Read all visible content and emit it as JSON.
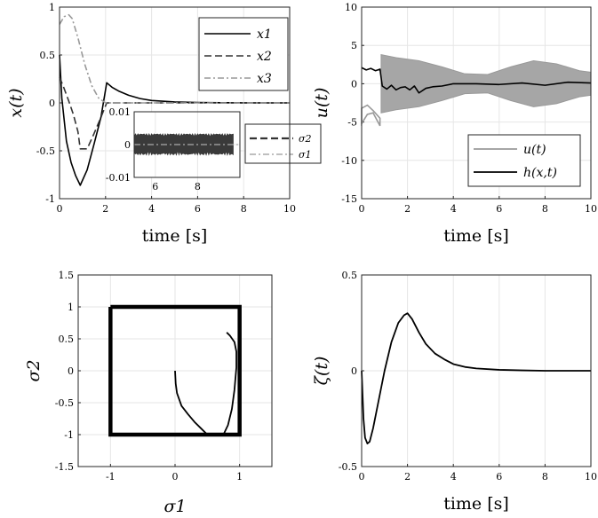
{
  "chart_data": [
    {
      "id": "p1",
      "type": "line",
      "xlabel": "time [s]",
      "ylabel": "x(t)",
      "xlim": [
        0,
        10
      ],
      "ylim": [
        -1,
        1
      ],
      "xticks": [
        "0",
        "2",
        "4",
        "6",
        "8",
        "10"
      ],
      "yticks": [
        "-1",
        "-0.5",
        "0",
        "0.5",
        "1"
      ],
      "grid": true,
      "legend_position": "top-right",
      "series": [
        {
          "name": "x1",
          "style": "solid",
          "color": "#000000",
          "x": [
            0,
            0.1,
            0.3,
            0.5,
            0.7,
            0.9,
            1.2,
            1.5,
            1.8,
            2.05,
            2.3,
            2.6,
            3,
            3.5,
            4,
            5,
            6,
            7,
            8,
            9,
            10
          ],
          "y": [
            0.5,
            0.05,
            -0.4,
            -0.62,
            -0.76,
            -0.86,
            -0.7,
            -0.43,
            -0.15,
            0.21,
            0.16,
            0.12,
            0.08,
            0.045,
            0.025,
            0.01,
            0.004,
            0.002,
            0.001,
            0,
            0
          ]
        },
        {
          "name": "x2",
          "style": "dashed",
          "color": "#333333",
          "x": [
            0,
            0.2,
            0.4,
            0.6,
            0.8,
            0.9,
            1.2,
            1.5,
            1.8,
            2.05,
            2.3,
            2.7,
            3.5,
            5,
            10
          ],
          "y": [
            0.27,
            0.15,
            0.02,
            -0.12,
            -0.3,
            -0.48,
            -0.48,
            -0.32,
            -0.15,
            0,
            0,
            0,
            0,
            0,
            0
          ]
        },
        {
          "name": "x3",
          "style": "dashdot",
          "color": "#999999",
          "x": [
            0,
            0.2,
            0.4,
            0.55,
            0.8,
            1.1,
            1.4,
            1.7,
            2,
            2.5,
            3,
            4,
            10
          ],
          "y": [
            0.82,
            0.9,
            0.92,
            0.88,
            0.68,
            0.4,
            0.18,
            0.05,
            0,
            0,
            0,
            0,
            0
          ]
        }
      ],
      "inset": {
        "xlim": [
          5,
          10
        ],
        "ylim": [
          -0.01,
          0.01
        ],
        "xticks": [
          "6",
          "8"
        ],
        "yticks": [
          "-0.01",
          "0",
          "0.01"
        ],
        "band_half_width": 0.0035,
        "band_x": [
          5,
          9.7
        ]
      },
      "inset_legend": [
        {
          "name": "σ2",
          "style": "dashed"
        },
        {
          "name": "σ1",
          "style": "dashdot"
        }
      ]
    },
    {
      "id": "p2",
      "type": "line",
      "xlabel": "time [s]",
      "ylabel": "u(t)",
      "xlim": [
        0,
        10
      ],
      "ylim": [
        -15,
        10
      ],
      "xticks": [
        "0",
        "2",
        "4",
        "6",
        "8",
        "10"
      ],
      "yticks": [
        "-15",
        "-10",
        "-5",
        "0",
        "5",
        "10"
      ],
      "grid": true,
      "legend_position": "bottom-right",
      "series": [
        {
          "name": "u(t)",
          "style": "band",
          "color": "#999999",
          "x": [
            0,
            0.25,
            0.5,
            0.8,
            0.85,
            1.5,
            2.5,
            3.5,
            4.5,
            5.5,
            6.5,
            7.5,
            8.5,
            9.5,
            10
          ],
          "upper": [
            -3.2,
            -2.8,
            -3.5,
            -4.5,
            3.8,
            3.4,
            3,
            2.2,
            1.3,
            1.2,
            2.2,
            3,
            2.6,
            1.7,
            1.5
          ],
          "lower": [
            -5.2,
            -4,
            -3.8,
            -5.5,
            -3.8,
            -3.4,
            -3,
            -2.2,
            -1.3,
            -1.2,
            -2.2,
            -3,
            -2.6,
            -1.7,
            -1.5
          ]
        },
        {
          "name": "h(x,t)",
          "style": "solid",
          "color": "#000000",
          "x": [
            0,
            0.2,
            0.4,
            0.6,
            0.8,
            0.9,
            1.1,
            1.3,
            1.5,
            1.7,
            1.9,
            2.1,
            2.3,
            2.5,
            2.8,
            3.1,
            3.5,
            4,
            5,
            6,
            7,
            8,
            9,
            10
          ],
          "y": [
            2.1,
            1.8,
            2.0,
            1.7,
            1.9,
            -0.3,
            -0.7,
            -0.2,
            -0.8,
            -0.5,
            -0.4,
            -0.8,
            -0.3,
            -1.2,
            -0.6,
            -0.4,
            -0.3,
            0,
            0,
            -0.1,
            0.1,
            -0.2,
            0.2,
            0.1
          ]
        }
      ]
    },
    {
      "id": "p3",
      "type": "line",
      "xlabel": "σ1",
      "ylabel": "σ2",
      "xlim": [
        -1.5,
        1.5
      ],
      "ylim": [
        -1.5,
        1.5
      ],
      "xticks": [
        "-1",
        "0",
        "1"
      ],
      "yticks": [
        "-1.5",
        "-1",
        "-0.5",
        "0",
        "0.5",
        "1",
        "1.5"
      ],
      "grid": true,
      "series": [
        {
          "name": "",
          "style": "box",
          "color": "#000000",
          "x": [
            -1,
            1,
            1,
            -1,
            -1
          ],
          "y": [
            1,
            1,
            -1,
            -1,
            1
          ]
        },
        {
          "name": "",
          "style": "solid",
          "color": "#000000",
          "x": [
            0,
            0.01,
            0.03,
            0.1,
            0.2,
            0.3,
            0.4,
            0.5,
            0.55,
            0.65,
            0.75,
            0.82,
            0.88,
            0.92,
            0.95,
            0.95,
            0.92,
            0.85,
            0.8
          ],
          "y": [
            0,
            -0.2,
            -0.35,
            -0.55,
            -0.68,
            -0.8,
            -0.9,
            -1,
            -1,
            -1,
            -1,
            -0.85,
            -0.6,
            -0.3,
            0.05,
            0.3,
            0.45,
            0.55,
            0.6
          ]
        }
      ]
    },
    {
      "id": "p4",
      "type": "line",
      "xlabel": "time [s]",
      "ylabel": "ζ(t)",
      "xlim": [
        0,
        10
      ],
      "ylim": [
        -0.5,
        0.5
      ],
      "xticks": [
        "0",
        "2",
        "4",
        "6",
        "8",
        "10"
      ],
      "yticks": [
        "-0.5",
        "0",
        "0.5"
      ],
      "grid": true,
      "series": [
        {
          "name": "",
          "style": "solid",
          "color": "#000000",
          "x": [
            0,
            0.08,
            0.15,
            0.25,
            0.35,
            0.5,
            0.7,
            1,
            1.3,
            1.6,
            1.85,
            2,
            2.2,
            2.5,
            2.8,
            3.2,
            3.6,
            4,
            4.5,
            5,
            6,
            7,
            8,
            10
          ],
          "y": [
            0,
            -0.25,
            -0.35,
            -0.38,
            -0.37,
            -0.3,
            -0.18,
            0,
            0.15,
            0.25,
            0.29,
            0.3,
            0.27,
            0.2,
            0.14,
            0.09,
            0.06,
            0.035,
            0.02,
            0.012,
            0.005,
            0.002,
            0,
            0
          ]
        }
      ]
    }
  ]
}
